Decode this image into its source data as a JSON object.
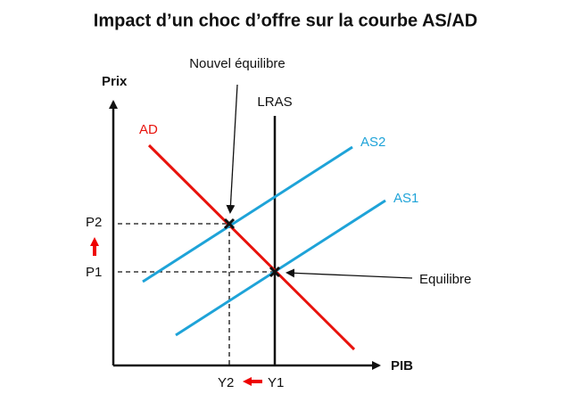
{
  "title": "Impact d’un choc d’offre sur la courbe AS/AD",
  "axes": {
    "y_label": "Prix",
    "x_label": "PIB"
  },
  "curves": {
    "ad": "AD",
    "lras": "LRAS",
    "as1": "AS1",
    "as2": "AS2"
  },
  "points": {
    "p1": "P1",
    "p2": "P2",
    "y1": "Y1",
    "y2": "Y2"
  },
  "annotations": {
    "new_equilibrium": "Nouvel équilibre",
    "equilibrium": "Equilibre"
  }
}
